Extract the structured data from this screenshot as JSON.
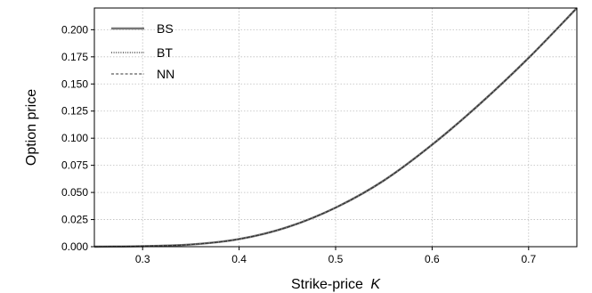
{
  "chart_data": {
    "type": "line",
    "title": "",
    "xlabel": "Strike-price",
    "xlabel_symbol": "K",
    "ylabel": "Option price",
    "xlim": [
      0.25,
      0.75
    ],
    "ylim": [
      0.0,
      0.22
    ],
    "x_ticks": [
      "0.3",
      "0.4",
      "0.5",
      "0.6",
      "0.7"
    ],
    "x_tick_values": [
      0.3,
      0.4,
      0.5,
      0.6,
      0.7
    ],
    "y_ticks": [
      "0.000",
      "0.025",
      "0.050",
      "0.075",
      "0.100",
      "0.125",
      "0.150",
      "0.175",
      "0.200"
    ],
    "y_tick_values": [
      0.0,
      0.025,
      0.05,
      0.075,
      0.1,
      0.125,
      0.15,
      0.175,
      0.2
    ],
    "grid": true,
    "legend_position": "top-left",
    "x": [
      0.25,
      0.3,
      0.35,
      0.4,
      0.45,
      0.5,
      0.55,
      0.6,
      0.65,
      0.7,
      0.75
    ],
    "series": [
      {
        "name": "BS",
        "style": "solid",
        "color": "#777777",
        "values": [
          0.0,
          0.0005,
          0.002,
          0.007,
          0.018,
          0.036,
          0.061,
          0.094,
          0.132,
          0.174,
          0.22
        ]
      },
      {
        "name": "BT",
        "style": "dotted",
        "color": "#222222",
        "values": [
          0.0,
          0.0005,
          0.002,
          0.007,
          0.018,
          0.036,
          0.061,
          0.094,
          0.132,
          0.174,
          0.22
        ]
      },
      {
        "name": "NN",
        "style": "dashed",
        "color": "#333333",
        "values": [
          0.0,
          0.0005,
          0.002,
          0.007,
          0.018,
          0.036,
          0.061,
          0.094,
          0.132,
          0.174,
          0.22
        ]
      }
    ]
  }
}
